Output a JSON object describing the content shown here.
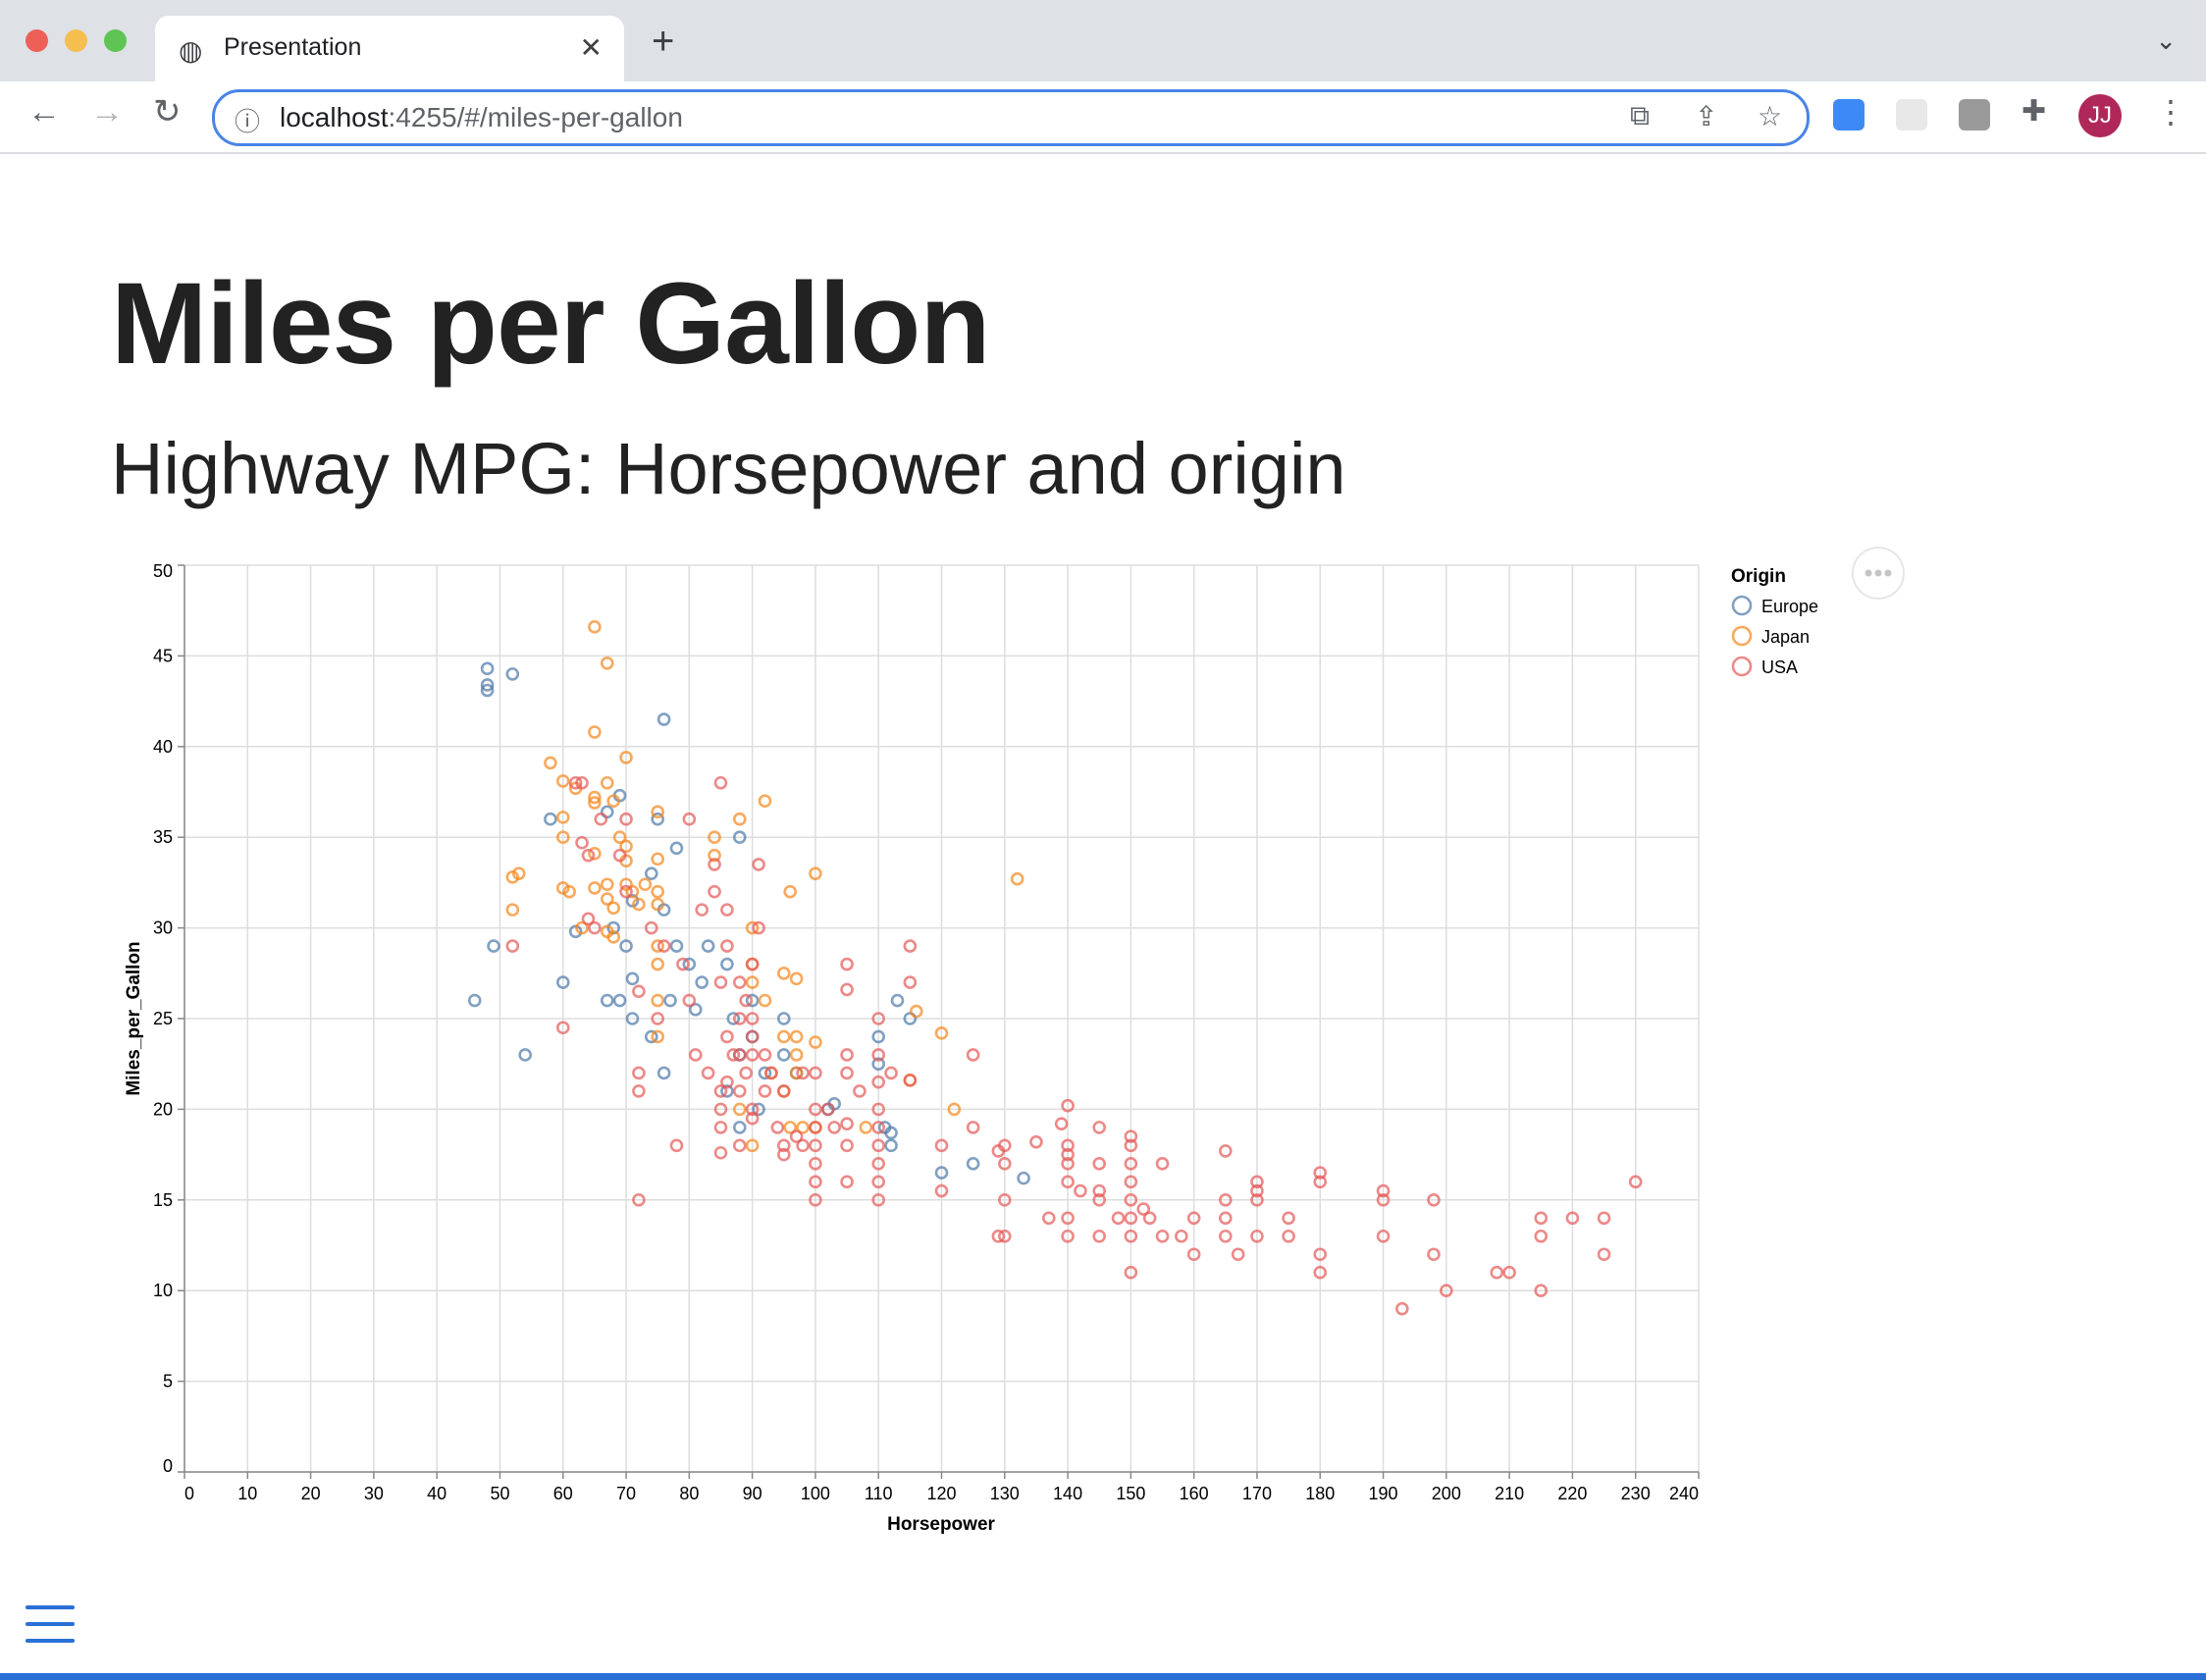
{
  "browser": {
    "tab_title": "Presentation",
    "url_host": "localhost",
    "url_rest": ":4255/#/miles-per-gallon",
    "avatar_initials": "JJ"
  },
  "page": {
    "title": "Miles per Gallon",
    "subtitle": "Highway MPG: Horsepower and origin"
  },
  "chart_data": {
    "type": "scatter",
    "xlabel": "Horsepower",
    "ylabel": "Miles_per_Gallon",
    "xlim": [
      0,
      240
    ],
    "ylim": [
      0,
      50
    ],
    "x_ticks": [
      0,
      10,
      20,
      30,
      40,
      50,
      60,
      70,
      80,
      90,
      100,
      110,
      120,
      130,
      140,
      150,
      160,
      170,
      180,
      190,
      200,
      210,
      220,
      230,
      240
    ],
    "y_ticks": [
      0,
      5,
      10,
      15,
      20,
      25,
      30,
      35,
      40,
      45,
      50
    ],
    "grid": true,
    "legend": {
      "title": "Origin",
      "placement": "right"
    },
    "series": [
      {
        "name": "Europe",
        "color": "#4c78a8",
        "points": [
          [
            46,
            26
          ],
          [
            48,
            44.3
          ],
          [
            48,
            43.4
          ],
          [
            48,
            43.1
          ],
          [
            52,
            44
          ],
          [
            49,
            29
          ],
          [
            54,
            23
          ],
          [
            58,
            36
          ],
          [
            60,
            27
          ],
          [
            62,
            29.8
          ],
          [
            67,
            26
          ],
          [
            68,
            30
          ],
          [
            69,
            26
          ],
          [
            70,
            29
          ],
          [
            71,
            31.5
          ],
          [
            74,
            24
          ],
          [
            75,
            36
          ],
          [
            74,
            33
          ],
          [
            76,
            31
          ],
          [
            76,
            22
          ],
          [
            78,
            34.4
          ],
          [
            76,
            41.5
          ],
          [
            69,
            37.3
          ],
          [
            67,
            36.4
          ],
          [
            71,
            27.2
          ],
          [
            71,
            25
          ],
          [
            77,
            26
          ],
          [
            78,
            29
          ],
          [
            80,
            28
          ],
          [
            81,
            25.5
          ],
          [
            82,
            27
          ],
          [
            83,
            29
          ],
          [
            86,
            28
          ],
          [
            86,
            21
          ],
          [
            87,
            25
          ],
          [
            88,
            23
          ],
          [
            88,
            35
          ],
          [
            88,
            19
          ],
          [
            90,
            24
          ],
          [
            90,
            26
          ],
          [
            91,
            20
          ],
          [
            92,
            22
          ],
          [
            95,
            23
          ],
          [
            95,
            25
          ],
          [
            97,
            22
          ],
          [
            102,
            20
          ],
          [
            103,
            20.3
          ],
          [
            110,
            22.5
          ],
          [
            110,
            24
          ],
          [
            111,
            19
          ],
          [
            112,
            18
          ],
          [
            113,
            26
          ],
          [
            115,
            25
          ],
          [
            120,
            16.5
          ],
          [
            125,
            17
          ],
          [
            133,
            16.2
          ],
          [
            112,
            18.7
          ]
        ]
      },
      {
        "name": "Japan",
        "color": "#f58518",
        "points": [
          [
            58,
            39.1
          ],
          [
            60,
            38.1
          ],
          [
            60,
            36.1
          ],
          [
            60,
            35
          ],
          [
            61,
            32
          ],
          [
            62,
            37.7
          ],
          [
            65,
            46.6
          ],
          [
            65,
            40.8
          ],
          [
            65,
            37.2
          ],
          [
            65,
            36.9
          ],
          [
            65,
            34.1
          ],
          [
            65,
            32.2
          ],
          [
            67,
            44.6
          ],
          [
            67,
            38
          ],
          [
            67,
            32.4
          ],
          [
            67,
            31.6
          ],
          [
            67,
            29.8
          ],
          [
            68,
            37
          ],
          [
            68,
            31.1
          ],
          [
            68,
            29.5
          ],
          [
            69,
            35
          ],
          [
            70,
            39.4
          ],
          [
            70,
            34.5
          ],
          [
            70,
            33.7
          ],
          [
            70,
            32.4
          ],
          [
            71,
            32
          ],
          [
            72,
            31.3
          ],
          [
            73,
            32.4
          ],
          [
            75,
            36.4
          ],
          [
            75,
            33.8
          ],
          [
            75,
            32
          ],
          [
            75,
            31.3
          ],
          [
            75,
            29
          ],
          [
            75,
            28
          ],
          [
            75,
            26
          ],
          [
            75,
            24
          ],
          [
            52,
            32.8
          ],
          [
            52,
            31
          ],
          [
            53,
            33
          ],
          [
            60,
            32.2
          ],
          [
            63,
            30
          ],
          [
            84,
            34
          ],
          [
            84,
            35
          ],
          [
            88,
            36
          ],
          [
            92,
            37
          ],
          [
            96,
            32
          ],
          [
            100,
            33
          ],
          [
            132,
            32.7
          ],
          [
            90,
            30
          ],
          [
            90,
            28
          ],
          [
            92,
            26
          ],
          [
            95,
            27.5
          ],
          [
            97,
            27.2
          ],
          [
            97,
            24
          ],
          [
            97,
            23
          ],
          [
            97,
            22
          ],
          [
            95,
            21
          ],
          [
            95,
            24
          ],
          [
            93,
            22
          ],
          [
            96,
            19
          ],
          [
            98,
            19
          ],
          [
            100,
            23.7
          ],
          [
            100,
            19
          ],
          [
            108,
            19
          ],
          [
            115,
            21.6
          ],
          [
            116,
            25.4
          ],
          [
            120,
            24.2
          ],
          [
            122,
            20
          ],
          [
            88,
            20
          ],
          [
            90,
            18
          ],
          [
            90,
            27
          ]
        ]
      },
      {
        "name": "USA",
        "color": "#e45756",
        "points": [
          [
            52,
            29
          ],
          [
            60,
            24.5
          ],
          [
            62,
            38
          ],
          [
            63,
            38
          ],
          [
            63,
            34.7
          ],
          [
            64,
            34
          ],
          [
            64,
            30.5
          ],
          [
            65,
            30
          ],
          [
            66,
            36
          ],
          [
            69,
            34
          ],
          [
            70,
            36
          ],
          [
            70,
            32
          ],
          [
            72,
            26.5
          ],
          [
            72,
            22
          ],
          [
            72,
            21
          ],
          [
            72,
            15
          ],
          [
            74,
            30
          ],
          [
            75,
            25
          ],
          [
            76,
            29
          ],
          [
            78,
            18
          ],
          [
            79,
            28
          ],
          [
            80,
            26
          ],
          [
            80,
            36
          ],
          [
            81,
            23
          ],
          [
            82,
            31
          ],
          [
            83,
            22
          ],
          [
            84,
            33.5
          ],
          [
            84,
            32
          ],
          [
            85,
            38
          ],
          [
            85,
            27
          ],
          [
            85,
            21
          ],
          [
            85,
            20
          ],
          [
            85,
            19
          ],
          [
            85,
            17.6
          ],
          [
            86,
            31
          ],
          [
            86,
            29
          ],
          [
            86,
            24
          ],
          [
            86,
            21.5
          ],
          [
            87,
            23
          ],
          [
            88,
            27
          ],
          [
            88,
            25
          ],
          [
            88,
            23
          ],
          [
            88,
            21
          ],
          [
            88,
            18
          ],
          [
            89,
            26
          ],
          [
            89,
            22
          ],
          [
            90,
            28
          ],
          [
            90,
            25
          ],
          [
            90,
            24
          ],
          [
            90,
            23
          ],
          [
            90,
            20
          ],
          [
            90,
            19.5
          ],
          [
            91,
            30
          ],
          [
            91,
            33.5
          ],
          [
            92,
            23
          ],
          [
            92,
            21
          ],
          [
            93,
            22
          ],
          [
            94,
            19
          ],
          [
            95,
            21
          ],
          [
            95,
            18
          ],
          [
            95,
            17.5
          ],
          [
            97,
            18.5
          ],
          [
            98,
            18
          ],
          [
            98,
            22
          ],
          [
            100,
            22
          ],
          [
            100,
            20
          ],
          [
            100,
            19
          ],
          [
            100,
            18
          ],
          [
            100,
            17
          ],
          [
            100,
            16
          ],
          [
            100,
            15
          ],
          [
            102,
            20
          ],
          [
            103,
            19
          ],
          [
            105,
            28
          ],
          [
            105,
            26.6
          ],
          [
            105,
            23
          ],
          [
            105,
            22
          ],
          [
            105,
            19.2
          ],
          [
            105,
            18
          ],
          [
            105,
            16
          ],
          [
            107,
            21
          ],
          [
            110,
            25
          ],
          [
            110,
            23
          ],
          [
            110,
            21.5
          ],
          [
            110,
            20
          ],
          [
            110,
            19
          ],
          [
            110,
            18
          ],
          [
            110,
            17
          ],
          [
            110,
            16
          ],
          [
            110,
            15
          ],
          [
            112,
            22
          ],
          [
            115,
            29
          ],
          [
            115,
            27
          ],
          [
            115,
            21.6
          ],
          [
            120,
            18
          ],
          [
            120,
            15.5
          ],
          [
            125,
            23
          ],
          [
            125,
            19
          ],
          [
            129,
            17.7
          ],
          [
            130,
            18
          ],
          [
            130,
            17
          ],
          [
            130,
            15
          ],
          [
            129,
            13
          ],
          [
            130,
            13
          ],
          [
            135,
            18.2
          ],
          [
            137,
            14
          ],
          [
            139,
            19.2
          ],
          [
            140,
            20.2
          ],
          [
            140,
            18
          ],
          [
            140,
            17.5
          ],
          [
            140,
            17
          ],
          [
            140,
            16
          ],
          [
            140,
            14
          ],
          [
            140,
            13
          ],
          [
            142,
            15.5
          ],
          [
            145,
            17
          ],
          [
            145,
            19
          ],
          [
            145,
            15.5
          ],
          [
            145,
            15
          ],
          [
            145,
            13
          ],
          [
            148,
            14
          ],
          [
            150,
            18.5
          ],
          [
            150,
            18
          ],
          [
            150,
            17
          ],
          [
            150,
            16
          ],
          [
            150,
            15
          ],
          [
            150,
            14
          ],
          [
            150,
            13
          ],
          [
            150,
            11
          ],
          [
            152,
            14.5
          ],
          [
            153,
            14
          ],
          [
            155,
            17
          ],
          [
            155,
            13
          ],
          [
            158,
            13
          ],
          [
            160,
            14
          ],
          [
            160,
            12
          ],
          [
            165,
            17.7
          ],
          [
            165,
            15
          ],
          [
            165,
            14
          ],
          [
            165,
            13
          ],
          [
            167,
            12
          ],
          [
            170,
            16
          ],
          [
            170,
            15.5
          ],
          [
            170,
            15
          ],
          [
            170,
            13
          ],
          [
            175,
            14
          ],
          [
            175,
            13
          ],
          [
            180,
            16.5
          ],
          [
            180,
            16
          ],
          [
            180,
            12
          ],
          [
            180,
            11
          ],
          [
            190,
            15.5
          ],
          [
            190,
            15
          ],
          [
            190,
            13
          ],
          [
            193,
            9
          ],
          [
            198,
            15
          ],
          [
            198,
            12
          ],
          [
            200,
            10
          ],
          [
            208,
            11
          ],
          [
            210,
            11
          ],
          [
            215,
            14
          ],
          [
            215,
            13
          ],
          [
            215,
            10
          ],
          [
            220,
            14
          ],
          [
            225,
            14
          ],
          [
            225,
            12
          ],
          [
            230,
            16
          ]
        ]
      }
    ]
  }
}
